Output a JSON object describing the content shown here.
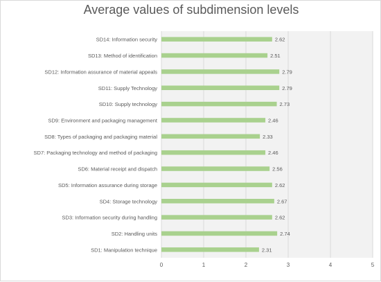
{
  "chart_data": {
    "type": "bar",
    "orientation": "horizontal",
    "title": "Average values of subdimension levels",
    "xlabel": "",
    "ylabel": "",
    "xlim": [
      0,
      5
    ],
    "x_ticks": [
      "0",
      "1",
      "2",
      "3",
      "4",
      "5"
    ],
    "grid": true,
    "legend": "none",
    "bar_color": "#a9d18e",
    "categories": [
      "SD14: Information security",
      "SD13: Method of identification",
      "SD12: Information assurance of material appeals",
      "SD11: Supply Technology",
      "SD10: Supply technology",
      "SD9: Environment and packaging management",
      "SD8: Types of packaging and packaging material",
      "SD7: Packaging technology and method of packaging",
      "SD6: Material receipt and dispatch",
      "SD5: Information assurance during storage",
      "SD4: Storage technology",
      "SD3: Information security during handling",
      "SD2: Handling units",
      "SD1: Manipulation technique"
    ],
    "values": [
      2.62,
      2.51,
      2.79,
      2.79,
      2.73,
      2.46,
      2.33,
      2.46,
      2.56,
      2.62,
      2.67,
      2.62,
      2.74,
      2.31
    ],
    "value_labels": [
      "2.62",
      "2.51",
      "2.79",
      "2.79",
      "2.73",
      "2.46",
      "2.33",
      "2.46",
      "2.56",
      "2.62",
      "2.67",
      "2.62",
      "2.74",
      "2.31"
    ]
  }
}
